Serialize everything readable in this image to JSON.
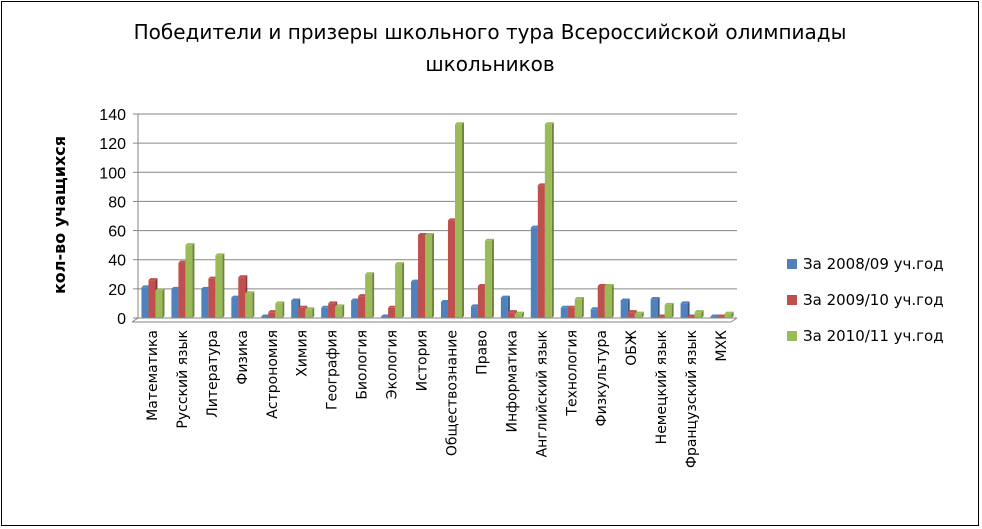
{
  "chart_data": {
    "type": "bar",
    "title_lines": [
      "Победители и призеры школьного тура Всероссийской олимпиады",
      "школьников"
    ],
    "xlabel": "",
    "ylabel": "кол-во учащихся",
    "ylim": [
      0,
      140
    ],
    "yticks": [
      "0",
      "20",
      "40",
      "60",
      "80",
      "100",
      "120",
      "140"
    ],
    "grid": true,
    "legend_position": "right",
    "categories": [
      "Математика",
      "Русский язык",
      "Литература",
      "Физика",
      "Астрономия",
      "Химия",
      "География",
      "Биология",
      "Экология",
      "История",
      "Обществознание",
      "Право",
      "Информатика",
      "Английский язык",
      "Технология",
      "Физкультура",
      "ОБЖ",
      "Немецкий язык",
      "Французский язык",
      "МХК"
    ],
    "series": [
      {
        "name": "За 2008/09 уч.год",
        "color": "#4f81bd",
        "values": [
          21,
          20,
          20,
          14,
          1,
          12,
          7,
          12,
          1,
          25,
          11,
          8,
          14,
          62,
          7,
          6,
          12,
          13,
          10,
          1
        ]
      },
      {
        "name": "За 2009/10 уч.год",
        "color": "#c0504d",
        "values": [
          26,
          38,
          27,
          28,
          4,
          7,
          10,
          15,
          7,
          57,
          67,
          22,
          4,
          91,
          7,
          22,
          4,
          1,
          1,
          1
        ]
      },
      {
        "name": "За 2010/11 уч.год",
        "color": "#9bbb59",
        "values": [
          19,
          50,
          43,
          17,
          10,
          6,
          8,
          30,
          37,
          57,
          133,
          53,
          3,
          133,
          13,
          22,
          3,
          9,
          4,
          3
        ]
      }
    ]
  }
}
